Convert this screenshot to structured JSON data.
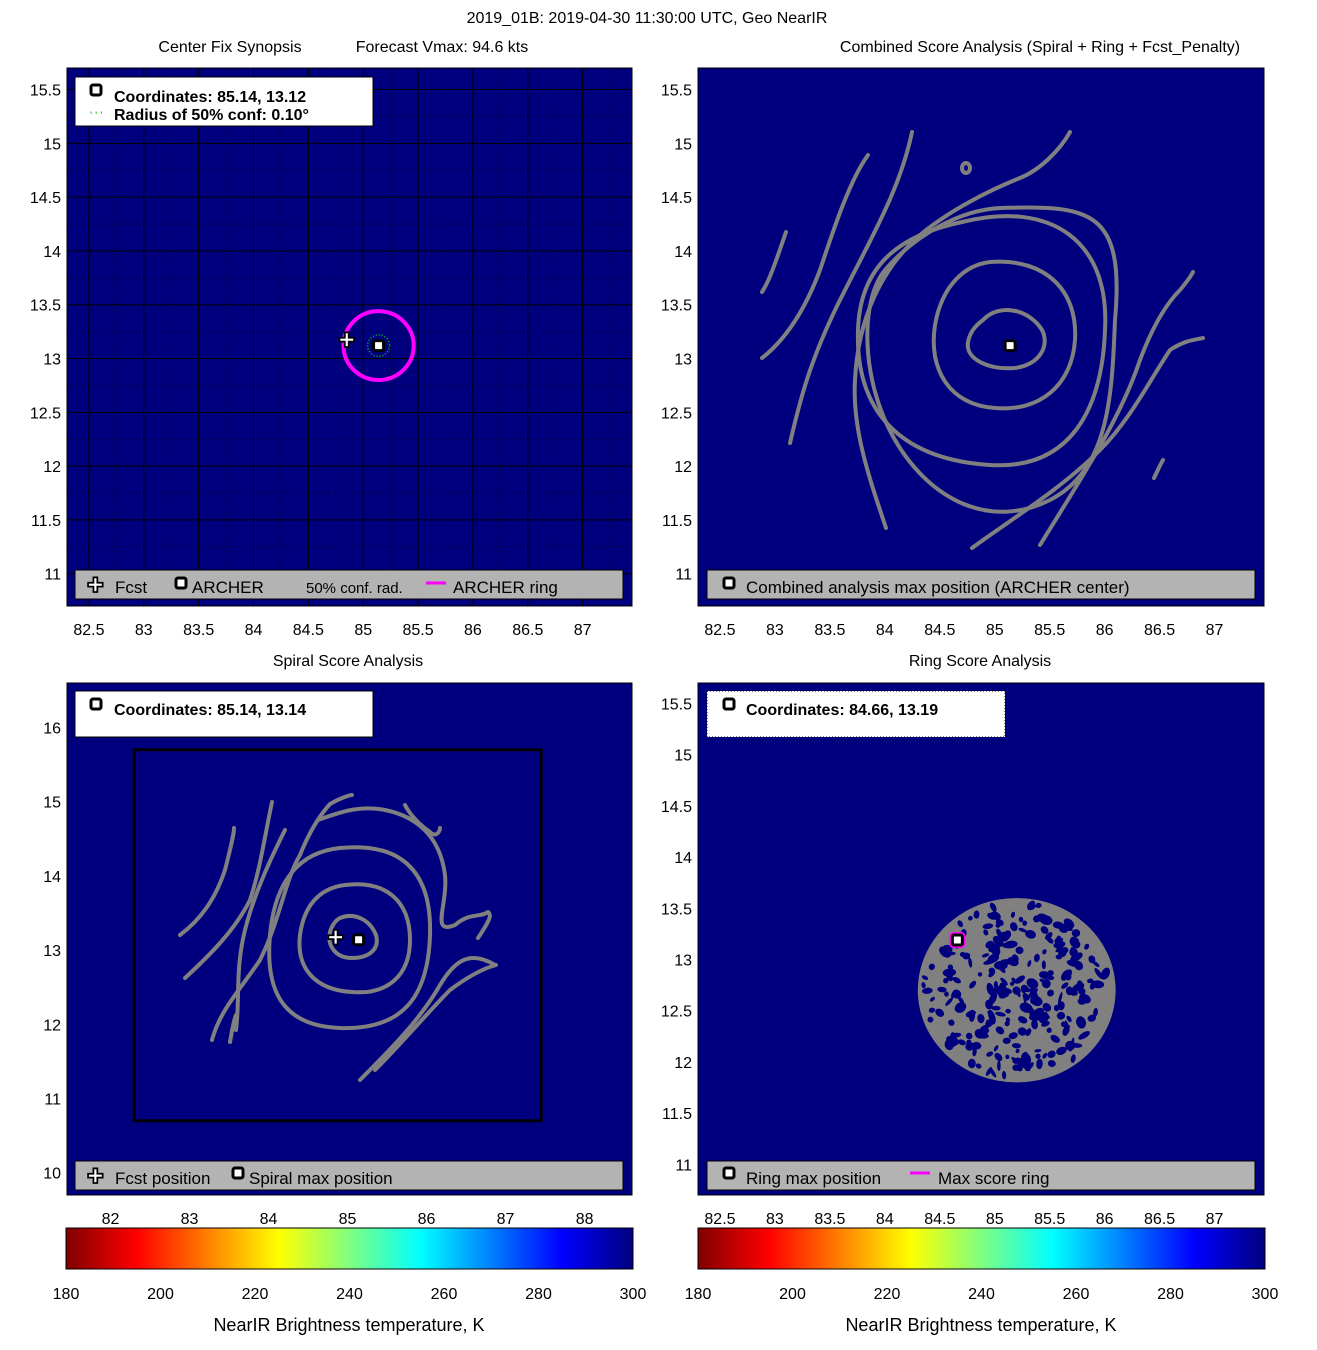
{
  "figure": {
    "title": "2019_01B: 2019-04-30 11:30:00 UTC, Geo NearIR"
  },
  "chart_data": [
    {
      "id": "center_fix",
      "type": "scatter",
      "title_left": "Center Fix Synopsis",
      "title_right": "Forecast Vmax: 94.6 kts",
      "xlabel": "",
      "ylabel": "",
      "xlim": [
        82.3,
        87.45
      ],
      "ylim": [
        10.7,
        15.7
      ],
      "x_ticks": [
        82.5,
        83,
        83.5,
        84,
        84.5,
        85,
        85.5,
        86,
        86.5,
        87
      ],
      "y_ticks": [
        11,
        11.5,
        12,
        12.5,
        13,
        13.5,
        14,
        14.5,
        15,
        15.5
      ],
      "grid": true,
      "background_color": "#00007f",
      "info_box": {
        "coordinates": "Coordinates: 85.14, 13.12",
        "radius": "Radius of 50% conf: 0.10°"
      },
      "legend": {
        "placement": "bottom",
        "items": [
          "Fcst",
          "ARCHER",
          "50% conf. rad.",
          "ARCHER ring"
        ]
      },
      "points": {
        "fcst": {
          "x": 84.85,
          "y": 13.17
        },
        "archer": {
          "x": 85.14,
          "y": 13.12
        }
      },
      "conf_radius_deg": 0.1,
      "archer_ring": {
        "center_x": 85.14,
        "center_y": 13.12,
        "radius_deg": 0.32,
        "color": "#ff00ff"
      }
    },
    {
      "id": "combined",
      "type": "contour",
      "title": "Combined Score Analysis (Spiral + Ring + Fcst_Penalty)",
      "xlim": [
        82.3,
        87.45
      ],
      "ylim": [
        10.7,
        15.7
      ],
      "x_ticks": [
        82.5,
        83,
        83.5,
        84,
        84.5,
        85,
        85.5,
        86,
        86.5,
        87
      ],
      "y_ticks": [
        11,
        11.5,
        12,
        12.5,
        13,
        13.5,
        14,
        14.5,
        15,
        15.5
      ],
      "background_color": "#00007f",
      "contour_color": "#808080",
      "legend": {
        "placement": "bottom",
        "items": [
          "Combined analysis max position (ARCHER center)"
        ]
      },
      "max_position": {
        "x": 85.14,
        "y": 13.12
      }
    },
    {
      "id": "spiral",
      "type": "contour",
      "title": "Spiral Score Analysis",
      "xlim": [
        81.45,
        88.6
      ],
      "ylim": [
        9.7,
        16.6
      ],
      "x_ticks": [
        82,
        83,
        84,
        85,
        86,
        87,
        88
      ],
      "y_ticks": [
        10,
        11,
        12,
        13,
        14,
        15,
        16
      ],
      "background_color": "#00007f",
      "contour_color": "#808080",
      "info_box": {
        "coordinates": "Coordinates: 85.14, 13.14"
      },
      "legend": {
        "placement": "bottom",
        "items": [
          "Fcst position",
          "Spiral max position"
        ]
      },
      "points": {
        "fcst": {
          "x": 84.85,
          "y": 13.17
        },
        "spiral_max": {
          "x": 85.14,
          "y": 13.14
        }
      },
      "search_box": {
        "x": [
          82.3,
          87.45
        ],
        "y": [
          10.7,
          15.7
        ]
      }
    },
    {
      "id": "ring",
      "type": "contour",
      "title": "Ring Score Analysis",
      "xlim": [
        82.3,
        87.45
      ],
      "ylim": [
        10.7,
        15.7
      ],
      "x_ticks": [
        82.5,
        83,
        83.5,
        84,
        84.5,
        85,
        85.5,
        86,
        86.5,
        87
      ],
      "y_ticks": [
        11,
        11.5,
        12,
        12.5,
        13,
        13.5,
        14,
        14.5,
        15,
        15.5
      ],
      "background_color": "#00007f",
      "contour_color": "#808080",
      "info_box": {
        "coordinates": "Coordinates: 84.66, 13.19"
      },
      "legend": {
        "placement": "bottom",
        "items": [
          "Ring max position",
          "Max score ring"
        ]
      },
      "ring_max": {
        "x": 84.66,
        "y": 13.19
      },
      "blob": {
        "center_x": 85.2,
        "center_y": 12.7,
        "radius_deg": 0.9
      }
    },
    {
      "id": "colorbar_left",
      "type": "colorbar",
      "xlabel": "NearIR Brightness temperature, K",
      "ticks": [
        180,
        200,
        220,
        240,
        260,
        280,
        300
      ],
      "range": [
        180,
        300
      ],
      "colormap": "jet_reversed"
    },
    {
      "id": "colorbar_right",
      "type": "colorbar",
      "xlabel": "NearIR Brightness temperature, K",
      "ticks": [
        180,
        200,
        220,
        240,
        260,
        280,
        300
      ],
      "range": [
        180,
        300
      ],
      "colormap": "jet_reversed"
    }
  ],
  "colors": {
    "plot_bg": "#00007f",
    "legend_bg": "#b3b3b3",
    "contour": "#808080",
    "ring": "#ff00ff",
    "conf": "#00cc00"
  }
}
